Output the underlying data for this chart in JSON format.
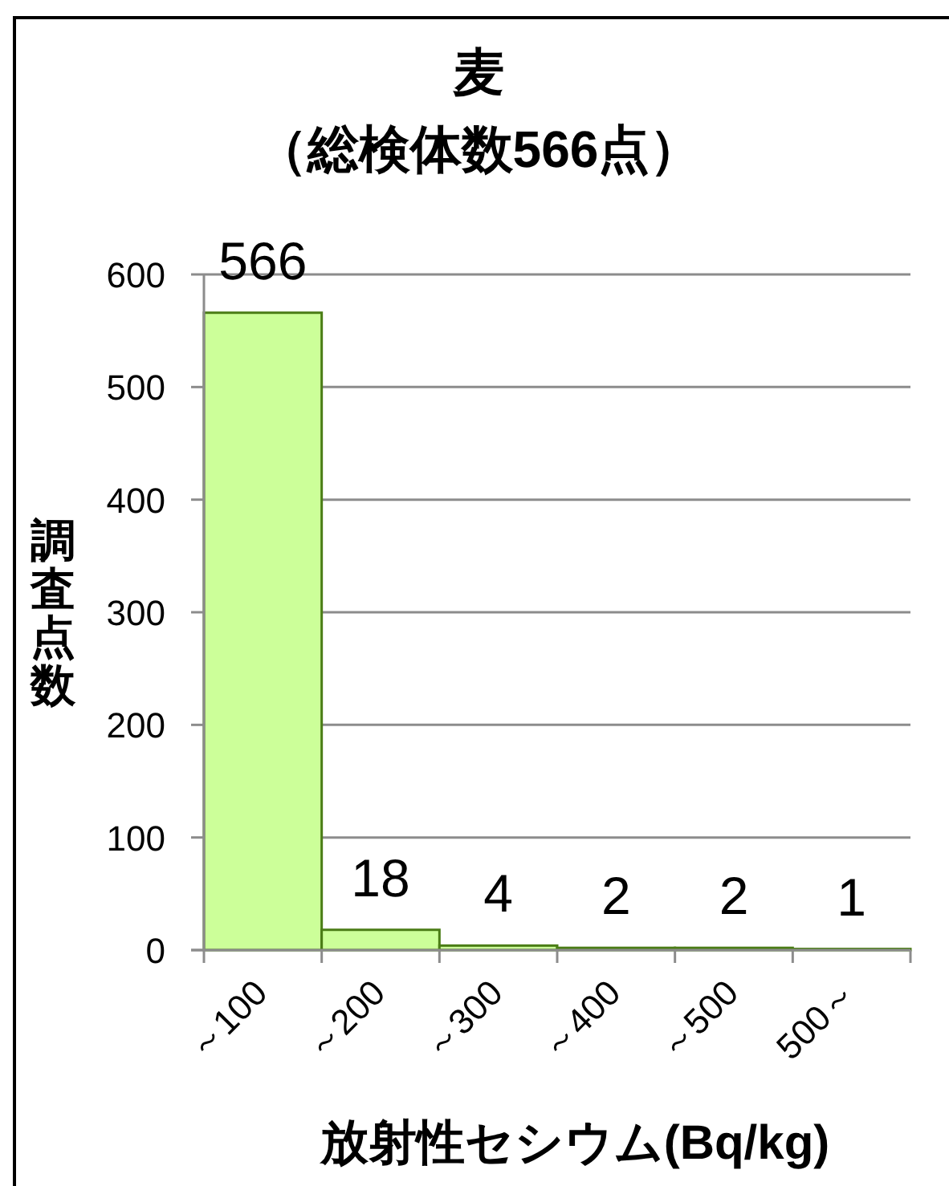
{
  "chart_data": {
    "type": "bar",
    "title": "麦",
    "subtitle": "（総検体数566点）",
    "xlabel": "放射性セシウム(Bq/kg)",
    "ylabel": "調査点数",
    "categories": [
      "～100",
      "～200",
      "～300",
      "～400",
      "～500",
      "500～"
    ],
    "values": [
      566,
      18,
      4,
      2,
      2,
      1
    ],
    "color": "#ccff99",
    "ylim": [
      0,
      600
    ],
    "yticks": [
      0,
      100,
      200,
      300,
      400,
      500,
      600
    ],
    "grid": "y",
    "data_labels": true
  }
}
